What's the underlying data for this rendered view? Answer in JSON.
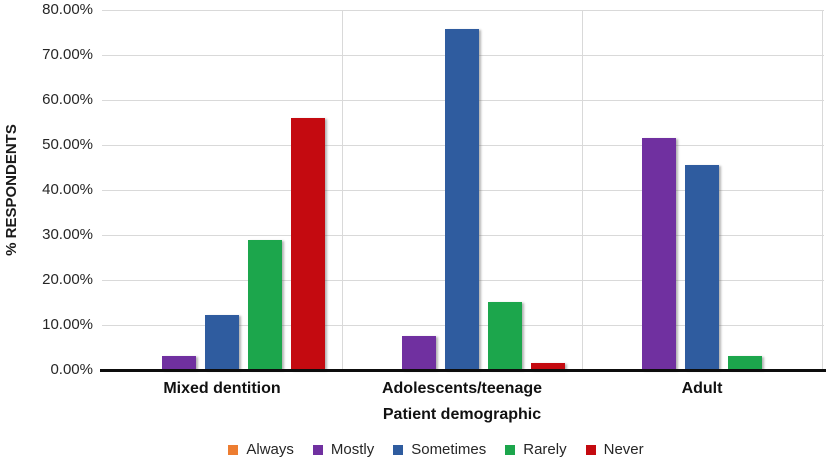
{
  "chart_data": {
    "type": "bar",
    "title": "",
    "categories": [
      "Mixed dentition",
      "Adolescents/teenage",
      "Adult"
    ],
    "series": [
      {
        "name": "Always",
        "color": "#ED7D31",
        "values": [
          0,
          0,
          0
        ]
      },
      {
        "name": "Mostly",
        "color": "#7030A0",
        "values": [
          3.03,
          7.58,
          51.52
        ]
      },
      {
        "name": "Sometimes",
        "color": "#2F5C9F",
        "values": [
          12.12,
          75.76,
          45.45
        ]
      },
      {
        "name": "Rarely",
        "color": "#1CA64C",
        "values": [
          28.79,
          15.15,
          3.03
        ]
      },
      {
        "name": "Never",
        "color": "#C40A10",
        "values": [
          56.06,
          1.52,
          0
        ]
      }
    ],
    "xlabel": "Patient demographic",
    "ylabel": "% RESPONDENTS",
    "ylim": [
      0,
      80
    ],
    "ytick_step": 10,
    "ytick_labels": [
      "0.00%",
      "10.00%",
      "20.00%",
      "30.00%",
      "40.00%",
      "50.00%",
      "60.00%",
      "70.00%",
      "80.00%"
    ],
    "grid": true,
    "legend_position": "bottom"
  }
}
